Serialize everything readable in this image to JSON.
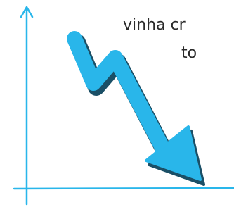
{
  "caption": {
    "line1": "vinha cr",
    "line2": "to"
  }
}
